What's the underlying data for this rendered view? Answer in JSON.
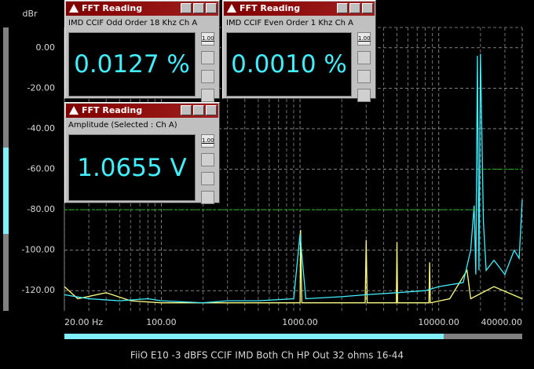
{
  "chart_data": {
    "type": "line",
    "ylabel": "dBr",
    "title": "FiiO E10 -3 dBFS CCIF IMD Both Ch HP Out 32 ohms 16-44",
    "xscale": "log",
    "xlim": [
      20,
      40000
    ],
    "ylim": [
      -130,
      10
    ],
    "xticks": [
      {
        "value": 20,
        "label": "20.00 Hz"
      },
      {
        "value": 100,
        "label": "100.00"
      },
      {
        "value": 1000,
        "label": "1000.00"
      },
      {
        "value": 10000,
        "label": "10000.00"
      },
      {
        "value": 40000,
        "label": "40000.00"
      }
    ],
    "yticks": [
      {
        "value": 0,
        "label": "0.00"
      },
      {
        "value": -20,
        "label": "-20.00"
      },
      {
        "value": -40,
        "label": "-40.00"
      },
      {
        "value": -60,
        "label": "-60.00"
      },
      {
        "value": -80,
        "label": "-80.00"
      },
      {
        "value": -100,
        "label": "-100.00"
      },
      {
        "value": -120,
        "label": "-120.00"
      }
    ],
    "xgrid": [
      30,
      40,
      50,
      60,
      70,
      80,
      90,
      200,
      300,
      400,
      500,
      600,
      700,
      800,
      900,
      2000,
      3000,
      4000,
      5000,
      6000,
      7000,
      8000,
      9000,
      20000,
      30000
    ],
    "grid": true,
    "series": [
      {
        "color": "#ffff80",
        "x": [
          20,
          25,
          40,
          60,
          100,
          300,
          1000,
          1010,
          1030,
          2950,
          3000,
          3050,
          4950,
          5000,
          5050,
          8500,
          8600,
          8700,
          12000,
          16000,
          17000,
          25000,
          40000
        ],
        "values": [
          -118,
          -124,
          -121,
          -125,
          -126,
          -126,
          -126,
          -90,
          -126,
          -126,
          -95,
          -126,
          -126,
          -96,
          -126,
          -126,
          -106,
          -126,
          -124,
          -110,
          -124,
          -118,
          -124
        ]
      },
      {
        "color": "#40f0ff",
        "x": [
          20,
          30,
          50,
          80,
          100,
          200,
          300,
          500,
          900,
          1000,
          1100,
          2000,
          3000,
          5000,
          8000,
          10000,
          15000,
          17000,
          18000,
          18500,
          19000,
          19500,
          20000,
          21000,
          22000,
          25000,
          30000,
          35000,
          38000,
          40000
        ],
        "values": [
          -122,
          -124,
          -125,
          -124,
          -125,
          -126,
          -125,
          -125,
          -124,
          -92,
          -124,
          -123,
          -122,
          -121,
          -120,
          -118,
          -116,
          -100,
          -78,
          -112,
          -4,
          -110,
          -3,
          -86,
          -110,
          -105,
          -112,
          -100,
          -104,
          -75
        ]
      },
      {
        "color": "#00c000",
        "x": [
          20,
          18900
        ],
        "values": [
          -80,
          -80
        ]
      },
      {
        "color": "#00c000",
        "x": [
          20000,
          40000
        ],
        "values": [
          -60,
          -60
        ]
      }
    ]
  },
  "windows": [
    {
      "title": "FFT Reading",
      "label": "IMD CCIF Odd Order 18 Khz Ch A",
      "reading": "0.0127 %",
      "icon_text": "1.00"
    },
    {
      "title": "FFT Reading",
      "label": "IMD CCIF Even Order 1 Khz Ch A",
      "reading": "0.0010 %",
      "icon_text": "1.00"
    },
    {
      "title": "FFT Reading",
      "label": "Amplitude (Selected : Ch A)",
      "reading": "1.0655 V",
      "icon_text": "1.00"
    }
  ]
}
